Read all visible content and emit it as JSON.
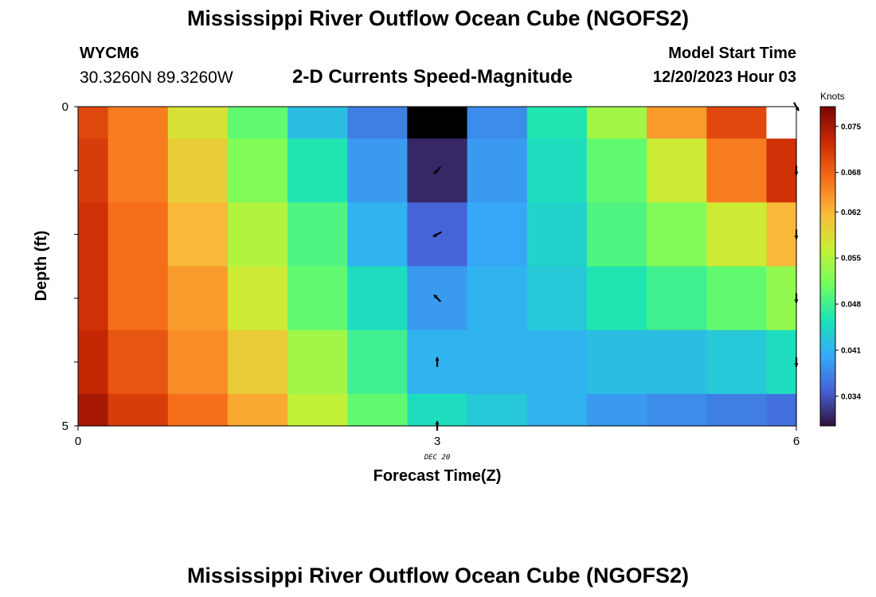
{
  "header": {
    "title": "Mississippi River Outflow Ocean Cube (NGOFS2)",
    "station_id": "WYCM6",
    "coordinates": "30.3260N  89.3260W",
    "subtitle": "2-D Currents Speed-Magnitude",
    "model_start_label": "Model Start Time",
    "model_start_value": "12/20/2023 Hour 03"
  },
  "footer": {
    "title": "Mississippi River Outflow Ocean Cube (NGOFS2)"
  },
  "colors": {
    "colormap": [
      "#30123b",
      "#4662d7",
      "#35abf8",
      "#1ae4b6",
      "#72fe5e",
      "#c8ef34",
      "#faba39",
      "#f66b19",
      "#ca2a04",
      "#7a0403"
    ]
  },
  "chart_data": {
    "type": "heatmap",
    "xlabel": "Forecast Time(Z)",
    "ylabel": "Depth (ft)",
    "x_tick_labels": [
      "0",
      "3",
      "6"
    ],
    "x_ticks": [
      0,
      3,
      6
    ],
    "y_tick_labels": [
      "0",
      "5"
    ],
    "y_ticks": [
      0,
      5
    ],
    "xlim": [
      0,
      6
    ],
    "ylim": [
      5,
      0
    ],
    "date_label": "DEC 20",
    "colorbar": {
      "title": "Knots",
      "tick_labels": [
        "0.075",
        "0.068",
        "0.062",
        "0.055",
        "0.048",
        "0.041",
        "0.034"
      ],
      "ticks": [
        0.075,
        0.068,
        0.062,
        0.055,
        0.048,
        0.041,
        0.034
      ],
      "range": [
        0.0295,
        0.078
      ]
    },
    "x_edges": [
      0,
      0.25,
      0.75,
      1.25,
      1.75,
      2.25,
      2.75,
      3.25,
      3.75,
      4.25,
      4.75,
      5.25,
      5.75,
      6
    ],
    "depth_edges": [
      0,
      0.5,
      1.5,
      2.5,
      3.5,
      4.5,
      5
    ],
    "values": [
      [
        0.07,
        0.066,
        0.058,
        0.05,
        0.042,
        0.037,
        null,
        0.038,
        0.046,
        0.054,
        0.064,
        0.07,
        null
      ],
      [
        0.071,
        0.066,
        0.06,
        0.052,
        0.046,
        0.039,
        0.031,
        0.039,
        0.045,
        0.05,
        0.057,
        0.066,
        0.072
      ],
      [
        0.072,
        0.067,
        0.062,
        0.055,
        0.049,
        0.041,
        0.035,
        0.04,
        0.044,
        0.049,
        0.052,
        0.057,
        0.062
      ],
      [
        0.072,
        0.067,
        0.064,
        0.057,
        0.05,
        0.045,
        0.039,
        0.041,
        0.043,
        0.046,
        0.048,
        0.05,
        0.053
      ],
      [
        0.073,
        0.069,
        0.065,
        0.06,
        0.054,
        0.048,
        0.041,
        0.041,
        0.041,
        0.042,
        0.042,
        0.043,
        0.045
      ],
      [
        0.075,
        0.071,
        0.067,
        0.063,
        0.056,
        0.05,
        0.045,
        0.043,
        0.041,
        0.039,
        0.038,
        0.037,
        0.036
      ]
    ],
    "vectors": [
      {
        "t": 3,
        "depth": 1,
        "angle_deg": 225
      },
      {
        "t": 3,
        "depth": 2,
        "angle_deg": 210
      },
      {
        "t": 3,
        "depth": 3,
        "angle_deg": 135
      },
      {
        "t": 3,
        "depth": 4,
        "angle_deg": 90
      },
      {
        "t": 3,
        "depth": 5,
        "angle_deg": 90
      },
      {
        "t": 6,
        "depth": 0,
        "angle_deg": 300
      },
      {
        "t": 6,
        "depth": 1,
        "angle_deg": 270
      },
      {
        "t": 6,
        "depth": 2,
        "angle_deg": 270
      },
      {
        "t": 6,
        "depth": 3,
        "angle_deg": 270
      },
      {
        "t": 6,
        "depth": 4,
        "angle_deg": 270
      }
    ]
  }
}
